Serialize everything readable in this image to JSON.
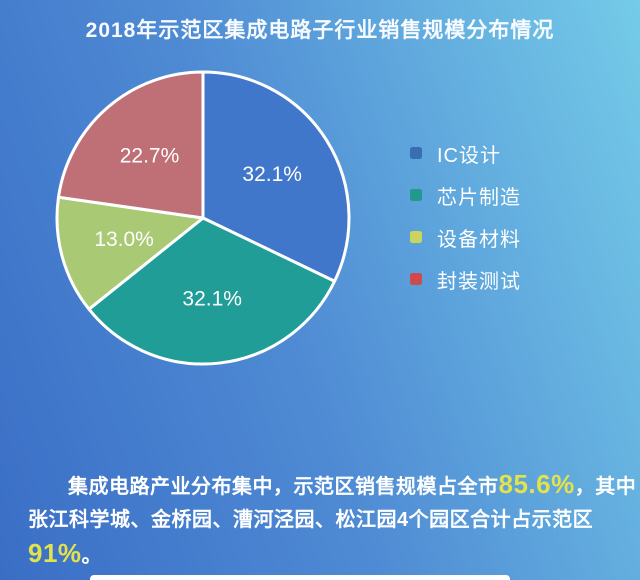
{
  "title": "2018年示范区集成电路子行业销售规模分布情况",
  "chart_data": {
    "type": "pie",
    "title": "2018年示范区集成电路子行业销售规模分布情况",
    "unit": "%",
    "start_angle_deg": 0,
    "direction": "clockwise",
    "legend_position": "right",
    "labels_inside": true,
    "label_color": "#ffffff",
    "separator_color": "#ffffff",
    "categories": [
      "IC设计",
      "芯片制造",
      "设备材料",
      "封装测试"
    ],
    "values": [
      32.1,
      32.1,
      13.0,
      22.7
    ],
    "slices": [
      {
        "label": "IC设计",
        "value": 32.1,
        "display": "32.1%",
        "slice_color": "#4177cb",
        "legend_color": "#3b6db3"
      },
      {
        "label": "芯片制造",
        "value": 32.1,
        "display": "32.1%",
        "slice_color": "#1f9d96",
        "legend_color": "#23998d"
      },
      {
        "label": "设备材料",
        "value": 13.0,
        "display": "13.0%",
        "slice_color": "#aac975",
        "legend_color": "#cbd45c"
      },
      {
        "label": "封装测试",
        "value": 22.7,
        "display": "22.7%",
        "slice_color": "#bf6f76",
        "legend_color": "#ce4a4f"
      }
    ]
  },
  "footer": {
    "text_color": "#ffffff",
    "highlight_color": "#e2e24c",
    "lines": [
      {
        "indent": true,
        "segments": [
          {
            "text": "集成电路产业分布集中，示范区销售规模占全市",
            "highlight": false
          },
          {
            "text": "85.6%",
            "highlight": true
          },
          {
            "text": "，其中",
            "highlight": false
          }
        ]
      },
      {
        "indent": false,
        "segments": [
          {
            "text": "张江科学城、金桥园、漕河泾园、松江园4个园区合计占示范区",
            "highlight": false
          }
        ]
      },
      {
        "indent": false,
        "segments": [
          {
            "text": "91%",
            "highlight": true
          },
          {
            "text": "。",
            "highlight": false
          }
        ]
      }
    ]
  },
  "background": {
    "gradient_start": "#3a6ec6",
    "gradient_mid": "#4f8bd4",
    "gradient_end": "#74cbe8",
    "bottom_strip_color": "#ffffff"
  }
}
